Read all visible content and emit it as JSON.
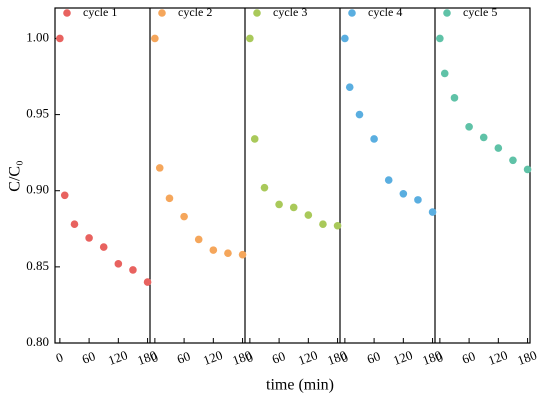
{
  "chart_data": {
    "type": "scatter",
    "xlabel": "time (min)",
    "ylabel": "C/C₀",
    "xlim": [
      -10,
      185
    ],
    "xticks": [
      0,
      60,
      120,
      180
    ],
    "ylim": [
      0.8,
      1.02
    ],
    "yticks": [
      {
        "value": 0.8,
        "label": "0.80"
      },
      0.85,
      {
        "value": 0.9,
        "label": "0.90"
      },
      0.95,
      {
        "value": 1.0,
        "label": "1.00"
      }
    ],
    "series": [
      {
        "name": "cycle 1",
        "color": "#e8625f",
        "x": [
          0,
          10,
          30,
          60,
          90,
          120,
          150,
          180
        ],
        "values": [
          1.0,
          0.897,
          0.878,
          0.869,
          0.863,
          0.852,
          0.848,
          0.84
        ]
      },
      {
        "name": "cycle 2",
        "color": "#f5a65b",
        "x": [
          0,
          10,
          30,
          60,
          90,
          120,
          150,
          180
        ],
        "values": [
          1.0,
          0.915,
          0.895,
          0.883,
          0.868,
          0.861,
          0.859,
          0.858
        ]
      },
      {
        "name": "cycle 3",
        "color": "#a9c95a",
        "x": [
          0,
          10,
          30,
          60,
          90,
          120,
          150,
          180
        ],
        "values": [
          1.0,
          0.934,
          0.902,
          0.891,
          0.889,
          0.884,
          0.878,
          0.877
        ]
      },
      {
        "name": "cycle 4",
        "color": "#5aaee0",
        "x": [
          0,
          10,
          30,
          60,
          90,
          120,
          150,
          180
        ],
        "values": [
          1.0,
          0.968,
          0.95,
          0.934,
          0.907,
          0.898,
          0.894,
          0.886
        ]
      },
      {
        "name": "cycle 5",
        "color": "#5fc2a7",
        "x": [
          0,
          10,
          30,
          60,
          90,
          120,
          150,
          180
        ],
        "values": [
          1.0,
          0.977,
          0.961,
          0.942,
          0.935,
          0.928,
          0.92,
          0.914
        ]
      }
    ]
  }
}
